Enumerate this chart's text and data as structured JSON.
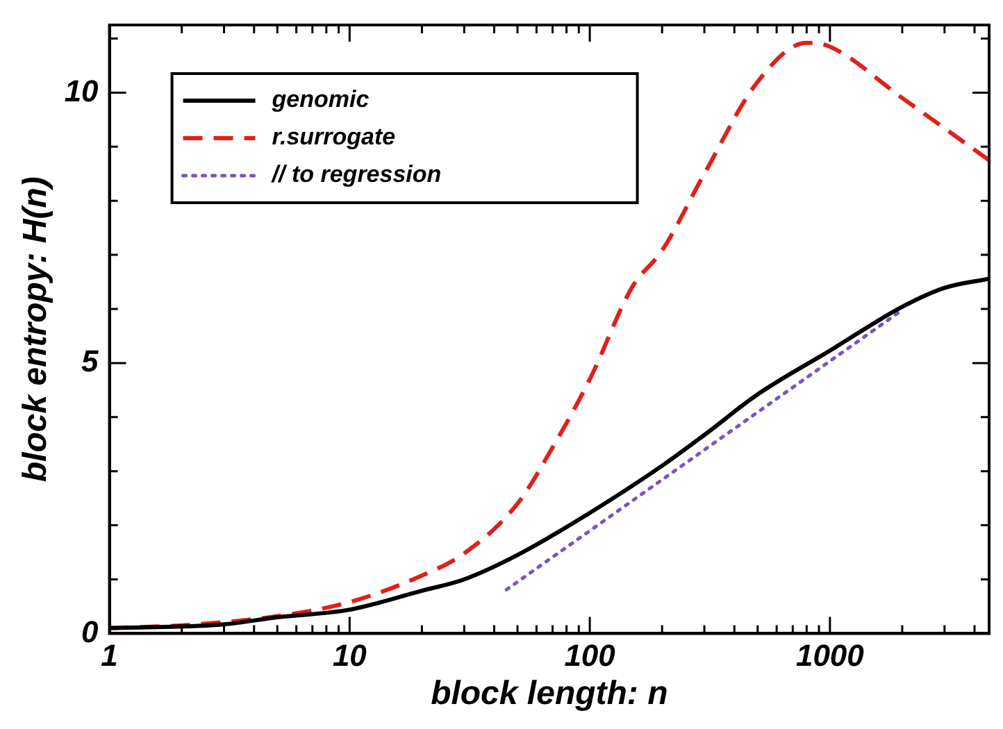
{
  "chart_data": {
    "type": "line",
    "xlabel": "block length: n",
    "ylabel": "block entropy: H(n)",
    "log": "x",
    "xlim": [
      1,
      4600
    ],
    "ylim": [
      0,
      11.25
    ],
    "xticks": [
      1,
      {
        "value": 2,
        "label": null
      },
      {
        "value": 3,
        "label": null
      },
      {
        "value": 4,
        "label": null
      },
      {
        "value": 5,
        "label": null
      },
      {
        "value": 6,
        "label": null
      },
      {
        "value": 7,
        "label": null
      },
      {
        "value": 8,
        "label": null
      },
      {
        "value": 9,
        "label": null
      },
      10,
      {
        "value": 20,
        "label": null
      },
      {
        "value": 30,
        "label": null
      },
      {
        "value": 40,
        "label": null
      },
      {
        "value": 50,
        "label": null
      },
      {
        "value": 60,
        "label": null
      },
      {
        "value": 70,
        "label": null
      },
      {
        "value": 80,
        "label": null
      },
      {
        "value": 90,
        "label": null
      },
      100,
      {
        "value": 200,
        "label": null
      },
      {
        "value": 300,
        "label": null
      },
      {
        "value": 400,
        "label": null
      },
      {
        "value": 500,
        "label": null
      },
      {
        "value": 600,
        "label": null
      },
      {
        "value": 700,
        "label": null
      },
      {
        "value": 800,
        "label": null
      },
      {
        "value": 900,
        "label": null
      },
      1000,
      {
        "value": 2000,
        "label": null
      },
      {
        "value": 3000,
        "label": null
      },
      {
        "value": 4000,
        "label": null
      }
    ],
    "yticks": [
      0,
      {
        "value": 1,
        "label": null
      },
      {
        "value": 2,
        "label": null
      },
      {
        "value": 3,
        "label": null
      },
      {
        "value": 4,
        "label": null
      },
      5,
      {
        "value": 6,
        "label": null
      },
      {
        "value": 7,
        "label": null
      },
      {
        "value": 8,
        "label": null
      },
      {
        "value": 9,
        "label": null
      },
      10,
      {
        "value": 11,
        "label": null
      }
    ],
    "grid": false,
    "legend": "top left",
    "marker": "none",
    "series": [
      {
        "name": "genomic",
        "color": "#000000",
        "line_style": "solid",
        "x": [
          1,
          3,
          5,
          10,
          20,
          30,
          50,
          100,
          200,
          300,
          500,
          1000,
          2000,
          3000,
          4600
        ],
        "values": [
          0.1,
          0.17,
          0.3,
          0.44,
          0.79,
          1.0,
          1.45,
          2.23,
          3.1,
          3.67,
          4.42,
          5.23,
          6.04,
          6.39,
          6.56
        ]
      },
      {
        "name": "r.surrogate",
        "color": "#e0201b",
        "line_style": "dashed",
        "x": [
          1,
          2,
          5,
          10,
          20,
          30,
          50,
          70,
          100,
          150,
          200,
          300,
          500,
          800,
          1000,
          2000,
          4600
        ],
        "values": [
          0.1,
          0.15,
          0.32,
          0.58,
          1.07,
          1.48,
          2.4,
          3.44,
          4.7,
          6.4,
          7.08,
          8.5,
          10.2,
          10.92,
          10.85,
          9.9,
          8.75
        ]
      },
      {
        "name": "// to regression",
        "color": "#7b52c8",
        "line_style": "dotted",
        "x": [
          45,
          2000
        ],
        "values": [
          0.81,
          5.98
        ]
      }
    ]
  }
}
